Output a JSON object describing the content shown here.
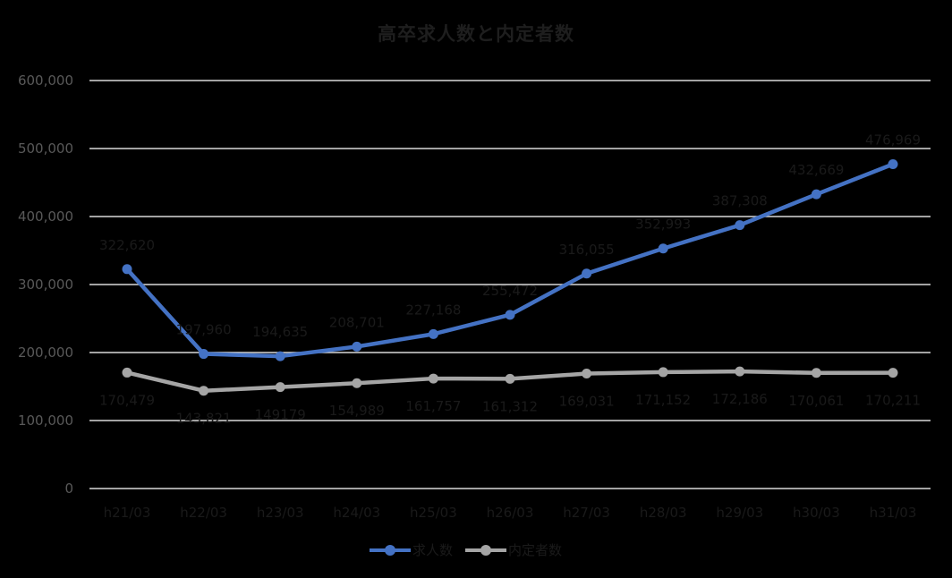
{
  "title": "高卒求人数と内定者数",
  "colors": {
    "background": "#000000",
    "gridline": "#d9d9d9",
    "series_job_openings": "#4472c4",
    "series_offers": "#a5a5a5"
  },
  "legend": {
    "items": [
      {
        "label": "求人数",
        "color": "#4472c4"
      },
      {
        "label": "内定者数",
        "color": "#a5a5a5"
      }
    ]
  },
  "chart_data": {
    "type": "line",
    "title": "高卒求人数と内定者数",
    "xlabel": "",
    "ylabel": "",
    "categories": [
      "h21/03",
      "h22/03",
      "h23/03",
      "h24/03",
      "h25/03",
      "h26/03",
      "h27/03",
      "h28/03",
      "h29/03",
      "h30/03",
      "h31/03"
    ],
    "series": [
      {
        "name": "求人数",
        "color": "#4472c4",
        "values": [
          322620,
          197960,
          194635,
          208701,
          227168,
          255472,
          316055,
          352993,
          387308,
          432669,
          476969
        ],
        "labels": [
          "322,620",
          "197,960",
          "194,635",
          "208,701",
          "227,168",
          "255,472",
          "316,055",
          "352,993",
          "387,308",
          "432,669",
          "476,969"
        ]
      },
      {
        "name": "内定者数",
        "color": "#a5a5a5",
        "values": [
          170479,
          143821,
          149179,
          154989,
          161757,
          161312,
          169031,
          171152,
          172186,
          170061,
          170211
        ],
        "labels": [
          "170,479",
          "143,821",
          "149179",
          "154,989",
          "161,757",
          "161,312",
          "169,031",
          "171,152",
          "172,186",
          "170,061",
          "170,211"
        ]
      }
    ],
    "ylim": [
      0,
      600000
    ],
    "yticks": [
      0,
      100000,
      200000,
      300000,
      400000,
      500000,
      600000
    ],
    "ytick_labels": [
      "0",
      "100,000",
      "200,000",
      "300,000",
      "400,000",
      "500,000",
      "600,000"
    ],
    "grid": true,
    "legend_position": "bottom"
  }
}
